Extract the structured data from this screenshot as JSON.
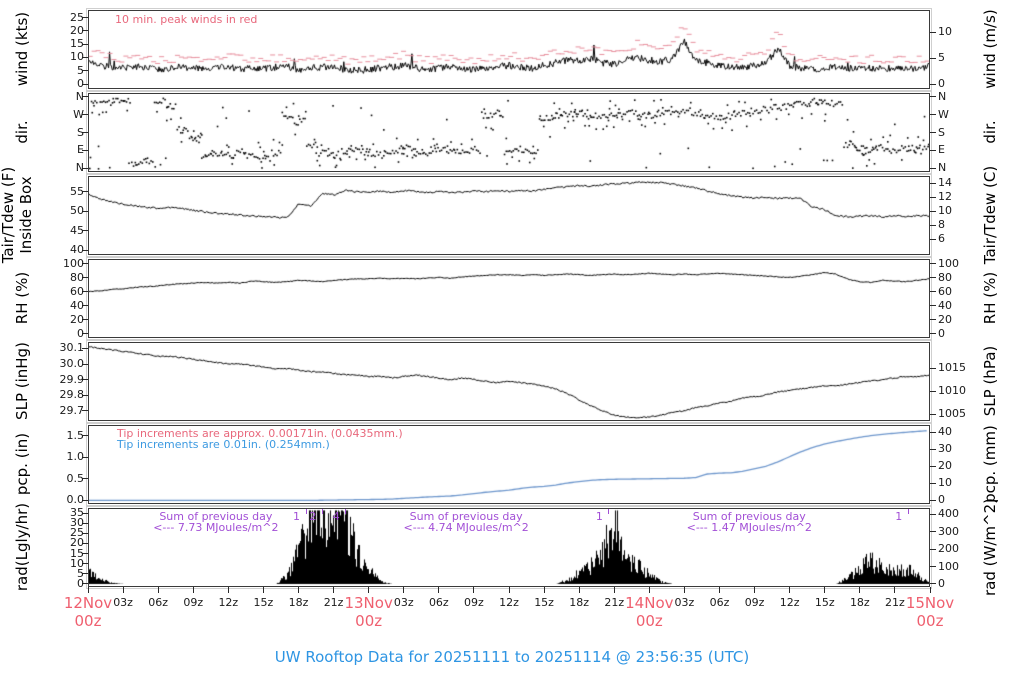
{
  "title": "UW Rooftop Data for 20251111  to  20251114 @ 23:56:35  (UTC)",
  "colors": {
    "series_black": "#000000",
    "peak_wind_pink": "#e78f9d",
    "annotation_red": "#e8687c",
    "annotation_blue": "#3d9ae1",
    "precip_line_blue": "#6d96cc",
    "annotation_purple": "#a24fd6",
    "date_red": "#ef5f6f",
    "title_blue": "#2e95e3"
  },
  "annotations": {
    "peak_winds": "10 min. peak winds in red",
    "tip_red": "Tip increments are approx. 0.00171in. (0.0435mm.)",
    "tip_blue": "Tip increments are 0.01in. (0.254mm.)",
    "sums": [
      {
        "line1": "Sum of previous day",
        "line2": "<--- 7.73 MJoules/m^2",
        "hour": 10.9
      },
      {
        "line1": "Sum of previous day",
        "line2": "<--- 4.74 MJoules/m^2",
        "hour": 32.3
      },
      {
        "line1": "Sum of previous day",
        "line2": "<--- 1.47 MJoules/m^2",
        "hour": 56.6
      }
    ],
    "markers": [
      {
        "label": "1",
        "hour": 18.6
      },
      {
        "label": "2",
        "hour": 20.0
      },
      {
        "label": "4",
        "hour": 22.0
      },
      {
        "label": "1",
        "hour": 44.5
      },
      {
        "label": "1",
        "hour": 70.1
      }
    ]
  },
  "x_axis": {
    "total_hours": 72,
    "tick_interval_hours": 3,
    "minor_labels": [
      "03z",
      "06z",
      "09z",
      "12z",
      "15z",
      "18z",
      "21z"
    ],
    "major": [
      {
        "hour": 0,
        "date": "12Nov",
        "time": "00z"
      },
      {
        "hour": 24,
        "date": "13Nov",
        "time": "00z"
      },
      {
        "hour": 48,
        "date": "14Nov",
        "time": "00z"
      },
      {
        "hour": 72,
        "date": "15Nov",
        "time": "00z"
      }
    ]
  },
  "panels": [
    {
      "label_left": "wind (kts)",
      "label_right": "wind (m/s)",
      "annotation": "10 min. peak winds in red",
      "ticks_left": {
        "labels": [
          "0",
          "5",
          "10",
          "15",
          "20",
          "25"
        ],
        "values": [
          0,
          5,
          10,
          15,
          20,
          25
        ],
        "range": [
          -1.5,
          27.5
        ]
      },
      "ticks_right": {
        "labels": [
          "0",
          "5",
          "10"
        ],
        "values": [
          0,
          9.72,
          19.44
        ]
      }
    },
    {
      "label_left": "dir.",
      "label_right": "dir.",
      "ticks_left": {
        "labels": [
          "N",
          "E",
          "S",
          "W",
          "N"
        ],
        "values": [
          0,
          90,
          180,
          270,
          360
        ],
        "range": [
          -15,
          375
        ]
      },
      "ticks_right": {
        "labels": [
          "N",
          "E",
          "S",
          "W",
          "N"
        ],
        "values": [
          0,
          90,
          180,
          270,
          360
        ]
      }
    },
    {
      "label_left": "Tair/Tdew (F)",
      "label_left2": "Inside Box",
      "label_right": "Tair/Tdew (C)",
      "ticks_left": {
        "labels": [
          "40",
          "45",
          "50",
          "55"
        ],
        "values": [
          40,
          45,
          50,
          55
        ],
        "range": [
          39,
          58.8
        ]
      },
      "ticks_right": {
        "labels": [
          "6",
          "8",
          "10",
          "12",
          "14"
        ],
        "values": [
          42.8,
          46.4,
          50,
          53.6,
          57.2
        ]
      }
    },
    {
      "label_left": "RH (%)",
      "label_right": "RH (%)",
      "ticks_left": {
        "labels": [
          "0",
          "20",
          "40",
          "60",
          "80",
          "100"
        ],
        "values": [
          0,
          20,
          40,
          60,
          80,
          100
        ],
        "range": [
          -5,
          105
        ]
      },
      "ticks_right": {
        "labels": [
          "0",
          "20",
          "40",
          "60",
          "80",
          "100"
        ],
        "values": [
          0,
          20,
          40,
          60,
          80,
          100
        ]
      }
    },
    {
      "label_left": "SLP (inHg)",
      "label_right": "SLP (hPa)",
      "ticks_left": {
        "labels": [
          "29.7",
          "29.8",
          "29.9",
          "30.0",
          "30.1"
        ],
        "values": [
          29.7,
          29.8,
          29.9,
          30.0,
          30.1
        ],
        "range": [
          29.64,
          30.135
        ]
      },
      "ticks_right": {
        "labels": [
          "1005",
          "1010",
          "1015"
        ],
        "values": [
          29.678,
          29.825,
          29.973
        ]
      }
    },
    {
      "label_left": "pcp. (in)",
      "label_right": "pcp. (mm)",
      "ticks_left": {
        "labels": [
          "0.0",
          "0.5",
          "1.0",
          "1.5"
        ],
        "values": [
          0,
          0.5,
          1.0,
          1.5
        ],
        "range": [
          -0.06,
          1.72
        ]
      },
      "ticks_right": {
        "labels": [
          "0",
          "10",
          "20",
          "30",
          "40"
        ],
        "values": [
          0,
          0.394,
          0.787,
          1.181,
          1.575
        ]
      }
    },
    {
      "label_left": "rad(Lgly/hr)",
      "label_right": "rad (W/m^2)",
      "ticks_left": {
        "labels": [
          "0",
          "5",
          "10",
          "15",
          "20",
          "25",
          "30",
          "35"
        ],
        "values": [
          0,
          5,
          10,
          15,
          20,
          25,
          30,
          35
        ],
        "range": [
          -1,
          37
        ]
      },
      "ticks_right": {
        "labels": [
          "0",
          "100",
          "200",
          "300",
          "400"
        ],
        "values": [
          0,
          8.6,
          17.2,
          25.8,
          34.4
        ]
      }
    }
  ],
  "chart_data": [
    {
      "type": "line",
      "name": "wind speed",
      "x_start_hour": 0,
      "x_step_hours": 1,
      "series": [
        {
          "name": "wind speed (kts)",
          "values": [
            8,
            7,
            6.5,
            6,
            6.5,
            6,
            5.5,
            6,
            6.5,
            6,
            5.5,
            6,
            6.5,
            6,
            5.5,
            6,
            6,
            6.5,
            5.5,
            6,
            6.5,
            6,
            5.5,
            5,
            5.5,
            6,
            6.5,
            7,
            6,
            5.5,
            6,
            6.5,
            6,
            5.5,
            6,
            6.5,
            7,
            6.5,
            6,
            7,
            8,
            9,
            8.5,
            9.5,
            8,
            7.5,
            9,
            10,
            9,
            8.5,
            9.5,
            16,
            9,
            8,
            7,
            6.5,
            6,
            7,
            8,
            13,
            7,
            6,
            5.5,
            6,
            6.5,
            6,
            5.5,
            6,
            5.5,
            6,
            5.5,
            6,
            6.5
          ]
        },
        {
          "name": "10 min. peak wind (kts)",
          "values": [
            12,
            11,
            10,
            9.5,
            10,
            9,
            9,
            9.5,
            10,
            9.5,
            9,
            9.5,
            10,
            9.5,
            9,
            9.5,
            9.5,
            10,
            9,
            9.5,
            10,
            9.5,
            9,
            8.5,
            9,
            9.5,
            10,
            11,
            9.5,
            9,
            9.5,
            10,
            9.5,
            9,
            9.5,
            10,
            11,
            10,
            9.5,
            11,
            12,
            13,
            13,
            14,
            12,
            11.5,
            13,
            15,
            13.5,
            13,
            14,
            22,
            13,
            12,
            11,
            10,
            9.5,
            11,
            12,
            20,
            11,
            9.5,
            9,
            9.5,
            10,
            9.5,
            9,
            9.5,
            9,
            9.5,
            9,
            9.5,
            10,
            10.5
          ]
        }
      ]
    },
    {
      "type": "scatter",
      "name": "wind direction",
      "x_start_hour": 0,
      "x_step_hours": 1,
      "note": "degrees: N=0/360 E=90 S=180 W=270",
      "series": [
        {
          "name": "dominant direction (deg)",
          "values": [
            350,
            345,
            340,
            350,
            30,
            40,
            340,
            320,
            200,
            150,
            60,
            80,
            70,
            90,
            60,
            50,
            80,
            270,
            240,
            120,
            80,
            70,
            90,
            100,
            80,
            70,
            90,
            110,
            90,
            80,
            100,
            90,
            85,
            95,
            270,
            280,
            90,
            100,
            90,
            260,
            270,
            275,
            280,
            270,
            265,
            270,
            280,
            275,
            270,
            280,
            285,
            290,
            280,
            270,
            260,
            270,
            280,
            290,
            300,
            310,
            320,
            330,
            340,
            335,
            330,
            120,
            100,
            90,
            110,
            95,
            100,
            90,
            110
          ]
        }
      ]
    },
    {
      "type": "line",
      "name": "air temperature inside box",
      "x_start_hour": 0,
      "x_step_hours": 1,
      "series": [
        {
          "name": "Tair (F)",
          "values": [
            54.3,
            53.2,
            52.3,
            51.8,
            51.3,
            51.0,
            50.8,
            51.0,
            50.7,
            50.2,
            49.8,
            49.5,
            49.3,
            49.0,
            48.8,
            48.6,
            48.4,
            48.3,
            52.0,
            51.3,
            54.6,
            54.2,
            55.3,
            55.0,
            54.8,
            55.2,
            54.9,
            55.3,
            55.1,
            54.8,
            55.0,
            54.7,
            54.9,
            55.2,
            55.0,
            55.3,
            55.1,
            55.4,
            55.2,
            55.6,
            56.0,
            56.3,
            56.6,
            56.4,
            56.8,
            57.0,
            57.2,
            57.4,
            57.5,
            57.3,
            57.0,
            56.5,
            56.0,
            55.2,
            54.5,
            54.0,
            53.6,
            53.4,
            53.5,
            53.3,
            53.4,
            53.2,
            51.0,
            50.5,
            48.8,
            48.6,
            48.7,
            48.9,
            48.6,
            48.8,
            48.7,
            48.9,
            48.8
          ]
        }
      ]
    },
    {
      "type": "line",
      "name": "relative humidity",
      "x_start_hour": 0,
      "x_step_hours": 1,
      "series": [
        {
          "name": "RH (%)",
          "values": [
            60,
            61,
            63,
            64,
            66,
            67,
            68,
            70,
            71,
            72,
            73,
            72,
            73,
            72,
            75,
            74,
            73,
            74,
            76,
            75,
            74,
            76,
            77,
            78,
            78,
            79,
            78,
            79,
            78,
            79,
            80,
            79,
            81,
            82,
            83,
            84,
            84,
            83,
            84,
            83,
            84,
            85,
            84,
            83,
            84,
            85,
            84,
            85,
            86,
            85,
            84,
            85,
            84,
            85,
            86,
            85,
            84,
            83,
            82,
            81,
            80,
            82,
            84,
            87,
            85,
            78,
            74,
            73,
            76,
            75,
            74,
            76,
            78
          ]
        }
      ]
    },
    {
      "type": "line",
      "name": "sea level pressure",
      "x_start_hour": 0,
      "x_step_hours": 1,
      "series": [
        {
          "name": "SLP (inHg)",
          "values": [
            30.11,
            30.1,
            30.09,
            30.08,
            30.07,
            30.06,
            30.05,
            30.05,
            30.04,
            30.03,
            30.02,
            30.01,
            30.0,
            30.0,
            29.99,
            29.98,
            29.97,
            29.97,
            29.96,
            29.95,
            29.95,
            29.94,
            29.93,
            29.93,
            29.92,
            29.92,
            29.91,
            29.92,
            29.93,
            29.92,
            29.91,
            29.9,
            29.91,
            29.9,
            29.89,
            29.88,
            29.89,
            29.88,
            29.87,
            29.86,
            29.84,
            29.81,
            29.77,
            29.73,
            29.7,
            29.67,
            29.66,
            29.655,
            29.66,
            29.67,
            29.69,
            29.7,
            29.72,
            29.73,
            29.75,
            29.76,
            29.78,
            29.79,
            29.8,
            29.82,
            29.83,
            29.84,
            29.85,
            29.86,
            29.86,
            29.87,
            29.88,
            29.89,
            29.9,
            29.91,
            29.92,
            29.92,
            29.93
          ]
        }
      ]
    },
    {
      "type": "line",
      "name": "cumulative precipitation",
      "x_start_hour": 0,
      "x_step_hours": 1,
      "series": [
        {
          "name": "cumulative precip (mm)",
          "values": [
            0,
            0,
            0,
            0,
            0,
            0,
            0,
            0,
            0,
            0,
            0,
            0,
            0,
            0,
            0,
            0,
            0,
            0,
            0,
            0,
            0.1,
            0.2,
            0.3,
            0.4,
            0.5,
            0.6,
            0.8,
            1.2,
            1.6,
            2.0,
            2.3,
            2.6,
            3.2,
            4.0,
            4.8,
            5.4,
            6.0,
            7.0,
            7.8,
            8.2,
            9.0,
            10.2,
            11.0,
            11.8,
            12.2,
            12.4,
            12.5,
            12.6,
            12.7,
            12.8,
            12.9,
            13.0,
            13.4,
            15.5,
            16.0,
            16.2,
            17.0,
            18.5,
            20.0,
            22.5,
            25.5,
            28.5,
            31.0,
            33.0,
            34.5,
            35.8,
            37.0,
            38.0,
            38.8,
            39.4,
            40.0,
            40.5,
            41.0
          ]
        }
      ]
    },
    {
      "type": "area",
      "name": "solar radiation",
      "x_start_hour": 0,
      "x_step_hours": 1,
      "series": [
        {
          "name": "radiation (Lgly/hr)",
          "values": [
            5,
            2,
            0.5,
            0,
            0,
            0,
            0,
            0,
            0,
            0,
            0,
            0,
            0,
            0,
            0,
            0,
            0,
            4,
            15,
            27,
            33,
            35,
            28,
            14,
            6,
            1,
            0,
            0,
            0,
            0,
            0,
            0,
            0,
            0,
            0,
            0,
            0,
            0,
            0,
            0,
            0,
            2,
            5,
            9,
            13,
            30,
            10,
            8,
            5,
            1,
            0,
            0,
            0,
            0,
            0,
            0,
            0,
            0,
            0,
            0,
            0,
            0,
            0,
            0,
            0,
            3,
            6,
            11,
            8,
            6,
            7,
            4,
            0.5
          ]
        }
      ]
    }
  ]
}
